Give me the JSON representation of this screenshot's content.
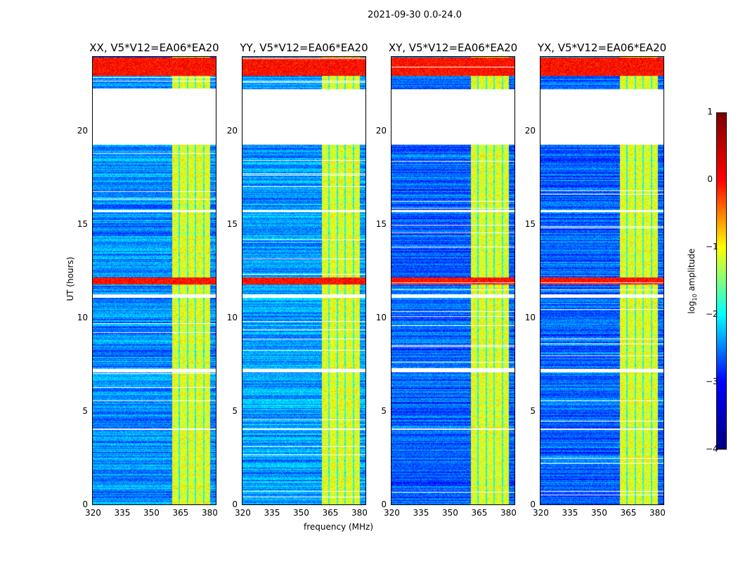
{
  "suptitle": "2021-09-30 0.0-24.0",
  "chart_data": {
    "type": "heatmap",
    "xlabel": "frequency (MHz)",
    "ylabel": "UT (hours)",
    "xlim": [
      320,
      384
    ],
    "ylim": [
      0,
      24
    ],
    "xticks": [
      320,
      335,
      350,
      365,
      380
    ],
    "yticks": [
      0,
      5,
      10,
      15,
      20
    ],
    "panels": [
      {
        "title": "XX, V5*V12=EA06*EA20",
        "baseline": -2.7
      },
      {
        "title": "YY, V5*V12=EA06*EA20",
        "baseline": -2.6
      },
      {
        "title": "XY, V5*V12=EA06*EA20",
        "baseline": -2.9
      },
      {
        "title": "YX, V5*V12=EA06*EA20",
        "baseline": -2.9
      }
    ],
    "rfi_band_mhz": [
      361,
      381
    ],
    "rfi_band_level": -1.0,
    "blank_time_ranges": [
      [
        19.3,
        22.3
      ],
      [
        15.7,
        15.8
      ],
      [
        11.1,
        11.3
      ],
      [
        7.1,
        7.3
      ],
      [
        4.0,
        4.1
      ]
    ],
    "strong_time_ranges": [
      [
        11.8,
        12.2
      ],
      [
        23.0,
        24.0
      ]
    ],
    "colorbar": {
      "label": "log10 amplitude",
      "label_main": "log",
      "label_sub": "10",
      "label_rest": " amplitude",
      "ticks": [
        1,
        0,
        -1,
        -2,
        -3,
        -4
      ],
      "vmin": -4,
      "vmax": 1,
      "colormap": "jet"
    }
  }
}
